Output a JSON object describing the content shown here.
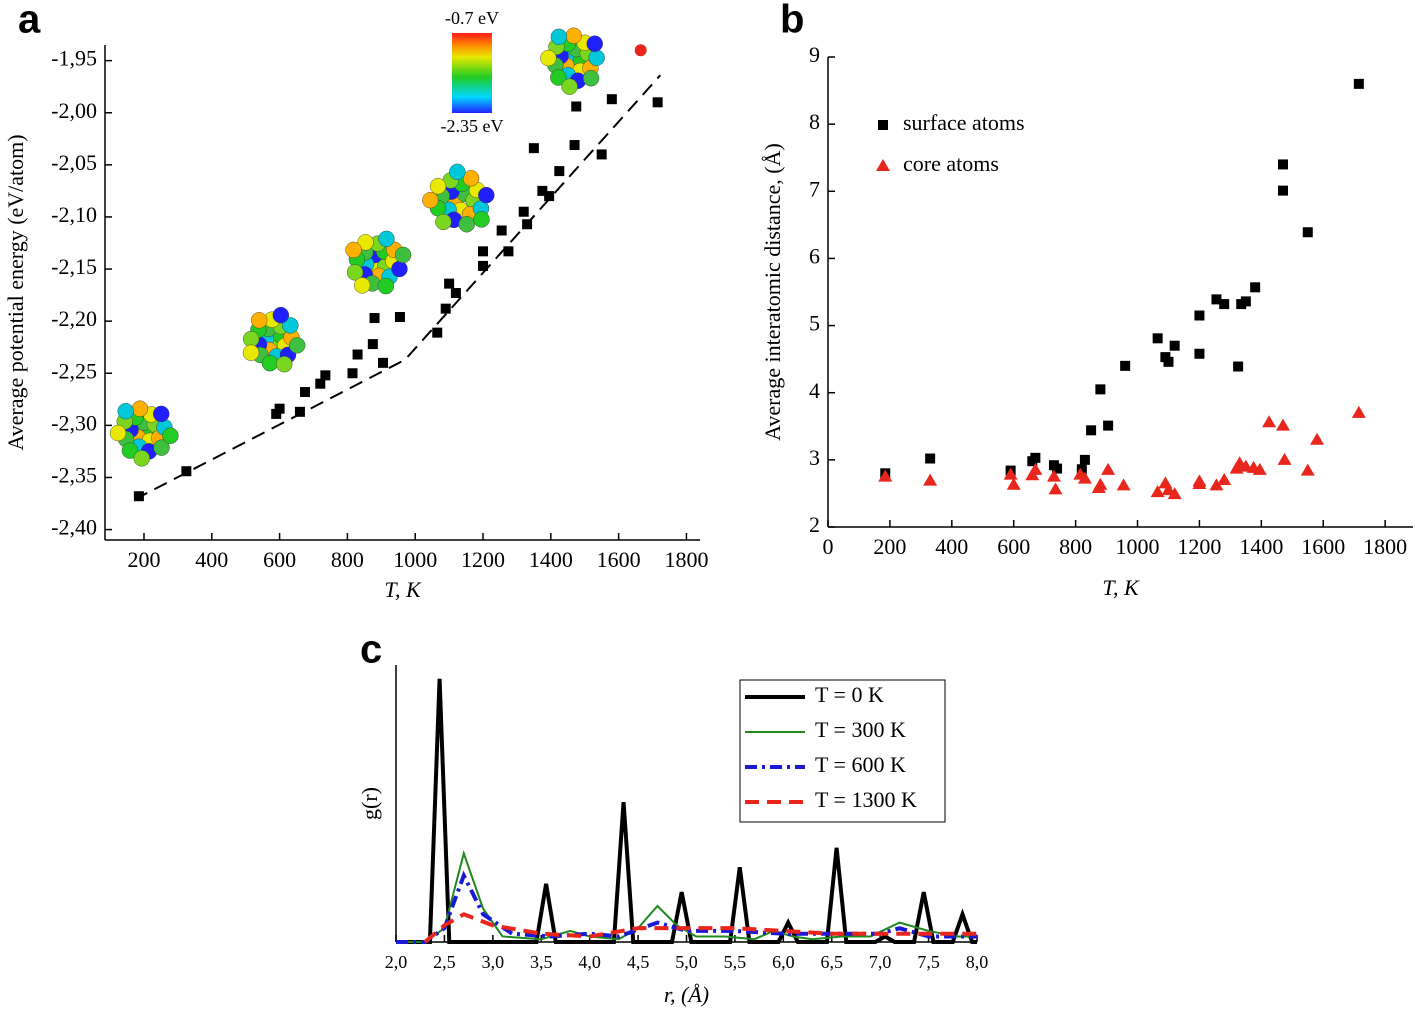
{
  "chart_data": [
    {
      "type": "scatter",
      "panel": "a",
      "xlabel": "T, K",
      "ylabel": "Average potential energy (eV/atom)",
      "colorbar_labels": [
        "-0.7 eV",
        "-2.35 eV"
      ],
      "xlim": [
        85,
        1840
      ],
      "ylim": [
        -2.41,
        -1.935
      ],
      "xticks": [
        200,
        400,
        600,
        800,
        1000,
        1200,
        1400,
        1600,
        1800
      ],
      "yticks": [
        {
          "value": -2.4,
          "label": "-2,40"
        },
        {
          "value": -2.35,
          "label": "-2,35"
        },
        {
          "value": -2.3,
          "label": "-2,30"
        },
        {
          "value": -2.25,
          "label": "-2,25"
        },
        {
          "value": -2.2,
          "label": "-2,20"
        },
        {
          "value": -2.15,
          "label": "-2,15"
        },
        {
          "value": -2.1,
          "label": "-2,10"
        },
        {
          "value": -2.05,
          "label": "-2,05"
        },
        {
          "value": -2.0,
          "label": "-2,00"
        },
        {
          "value": -1.95,
          "label": "-1,95"
        }
      ],
      "series": [
        {
          "color": "#000000",
          "marker": "square",
          "x": [
            185,
            325,
            590,
            600,
            660,
            675,
            720,
            735,
            815,
            830,
            875,
            880,
            905,
            955,
            1065,
            1090,
            1100,
            1120,
            1200,
            1200,
            1255,
            1275,
            1320,
            1330,
            1350,
            1375,
            1395,
            1425,
            1470,
            1475,
            1550,
            1580,
            1715
          ],
          "values": [
            -2.368,
            -2.344,
            -2.289,
            -2.284,
            -2.287,
            -2.268,
            -2.26,
            -2.252,
            -2.25,
            -2.232,
            -2.222,
            -2.197,
            -2.24,
            -2.196,
            -2.211,
            -2.188,
            -2.164,
            -2.173,
            -2.147,
            -2.133,
            -2.113,
            -2.133,
            -2.095,
            -2.107,
            -2.034,
            -2.075,
            -2.08,
            -2.056,
            -2.031,
            -1.994,
            -2.04,
            -1.987,
            -1.99
          ]
        },
        {
          "color": "#e8261c",
          "marker": "circle",
          "x": [
            1665
          ],
          "values": [
            -1.94
          ]
        },
        {
          "color": "#000000",
          "marker": "none",
          "line": "dashed",
          "x": [
            173,
            970,
            1723
          ],
          "values": [
            -2.371,
            -2.237,
            -1.964
          ]
        }
      ]
    },
    {
      "type": "scatter",
      "panel": "b",
      "xlabel": "T, K",
      "ylabel": "Average interatomic distance, (Å)",
      "legend": "upper left",
      "xlim": [
        0,
        1890
      ],
      "ylim": [
        2,
        9
      ],
      "xticks": [
        0,
        200,
        400,
        600,
        800,
        1000,
        1200,
        1400,
        1600,
        1800
      ],
      "yticks": [
        2,
        3,
        4,
        5,
        6,
        7,
        8,
        9
      ],
      "series": [
        {
          "name": "surface atoms",
          "color": "#000000",
          "marker": "square",
          "x": [
            185,
            330,
            590,
            660,
            670,
            730,
            740,
            820,
            830,
            850,
            880,
            905,
            960,
            1065,
            1090,
            1100,
            1120,
            1200,
            1200,
            1255,
            1280,
            1325,
            1335,
            1350,
            1380,
            1470,
            1470,
            1550,
            1715
          ],
          "values": [
            2.8,
            3.02,
            2.84,
            2.98,
            3.03,
            2.92,
            2.87,
            2.86,
            3.0,
            3.44,
            4.05,
            3.51,
            4.4,
            4.81,
            4.53,
            4.46,
            4.7,
            5.15,
            4.58,
            5.39,
            5.32,
            4.39,
            5.32,
            5.36,
            5.57,
            7.4,
            7.01,
            6.39,
            8.6
          ]
        },
        {
          "name": "core atoms",
          "color": "#e8261c",
          "marker": "triangle",
          "x": [
            185,
            330,
            590,
            600,
            660,
            670,
            730,
            735,
            815,
            830,
            875,
            880,
            905,
            955,
            1065,
            1090,
            1100,
            1120,
            1200,
            1200,
            1255,
            1280,
            1320,
            1330,
            1350,
            1375,
            1395,
            1425,
            1470,
            1475,
            1550,
            1580,
            1715
          ],
          "values": [
            2.75,
            2.69,
            2.78,
            2.63,
            2.77,
            2.85,
            2.75,
            2.56,
            2.78,
            2.72,
            2.58,
            2.63,
            2.85,
            2.62,
            2.52,
            2.65,
            2.55,
            2.49,
            2.64,
            2.68,
            2.62,
            2.7,
            2.87,
            2.95,
            2.9,
            2.88,
            2.85,
            3.56,
            3.51,
            3.0,
            2.84,
            3.3,
            3.7
          ]
        }
      ]
    },
    {
      "type": "line",
      "panel": "c",
      "xlabel": "r, (Å)",
      "ylabel": "g(r)",
      "legend": "upper right",
      "xlim": [
        2,
        8
      ],
      "ylim": [
        0,
        1
      ],
      "xticks": [
        {
          "value": 2.0,
          "label": "2,0"
        },
        {
          "value": 2.5,
          "label": "2,5"
        },
        {
          "value": 3.0,
          "label": "3,0"
        },
        {
          "value": 3.5,
          "label": "3,5"
        },
        {
          "value": 4.0,
          "label": "4,0"
        },
        {
          "value": 4.5,
          "label": "4,5"
        },
        {
          "value": 5.0,
          "label": "5,0"
        },
        {
          "value": 5.5,
          "label": "5,5"
        },
        {
          "value": 6.0,
          "label": "6,0"
        },
        {
          "value": 6.5,
          "label": "6,5"
        },
        {
          "value": 7.0,
          "label": "7,0"
        },
        {
          "value": 7.5,
          "label": "7,5"
        },
        {
          "value": 8.0,
          "label": "8,0"
        }
      ],
      "series": [
        {
          "name": "T = 0 K",
          "color": "#000000",
          "line": "solid",
          "width": 4,
          "x": [
            2.0,
            2.35,
            2.45,
            2.55,
            3.45,
            3.55,
            3.65,
            4.25,
            4.35,
            4.45,
            4.85,
            4.95,
            5.05,
            5.45,
            5.55,
            5.65,
            5.95,
            6.05,
            6.15,
            6.45,
            6.55,
            6.65,
            6.95,
            7.05,
            7.15,
            7.35,
            7.45,
            7.55,
            7.75,
            7.85,
            7.95,
            8.0
          ],
          "values": [
            0,
            0,
            0.95,
            0,
            0,
            0.21,
            0,
            0,
            0.505,
            0,
            0,
            0.18,
            0,
            0,
            0.27,
            0,
            0,
            0.07,
            0,
            0,
            0.34,
            0,
            0,
            0.02,
            0,
            0,
            0.18,
            0,
            0,
            0.1,
            0,
            0
          ]
        },
        {
          "name": "T = 300 K",
          "color": "#1f8a1f",
          "line": "solid",
          "width": 2,
          "x": [
            2.0,
            2.3,
            2.5,
            2.7,
            2.9,
            3.1,
            3.5,
            3.8,
            4.0,
            4.3,
            4.5,
            4.7,
            4.9,
            5.1,
            5.4,
            5.7,
            5.9,
            6.1,
            6.3,
            6.6,
            6.9,
            7.2,
            7.5,
            7.8,
            8.0
          ],
          "values": [
            0,
            0,
            0.05,
            0.32,
            0.12,
            0.02,
            0.01,
            0.04,
            0.02,
            0.01,
            0.05,
            0.13,
            0.06,
            0.02,
            0.02,
            0.01,
            0.04,
            0.02,
            0.01,
            0.02,
            0.02,
            0.07,
            0.04,
            0.02,
            0.02
          ]
        },
        {
          "name": "T = 600 K",
          "color": "#1a1ad6",
          "line": "dashdot",
          "width": 4,
          "x": [
            2.0,
            2.3,
            2.5,
            2.7,
            2.9,
            3.2,
            3.6,
            4.0,
            4.3,
            4.7,
            5.0,
            5.5,
            6.0,
            6.5,
            7.0,
            7.2,
            7.5,
            8.0
          ],
          "values": [
            0,
            0,
            0.05,
            0.24,
            0.1,
            0.03,
            0.02,
            0.03,
            0.02,
            0.07,
            0.04,
            0.04,
            0.03,
            0.03,
            0.03,
            0.05,
            0.02,
            0.02
          ]
        },
        {
          "name": "T = 1300 K",
          "color": "#e8261c",
          "line": "dashed",
          "width": 4,
          "x": [
            2.3,
            2.5,
            2.7,
            3.0,
            3.5,
            4.0,
            4.5,
            5.0,
            5.5,
            6.0,
            6.5,
            7.0,
            7.5,
            8.0
          ],
          "values": [
            0,
            0.06,
            0.1,
            0.06,
            0.03,
            0.02,
            0.05,
            0.05,
            0.05,
            0.04,
            0.03,
            0.03,
            0.03,
            0.03
          ]
        }
      ]
    }
  ]
}
